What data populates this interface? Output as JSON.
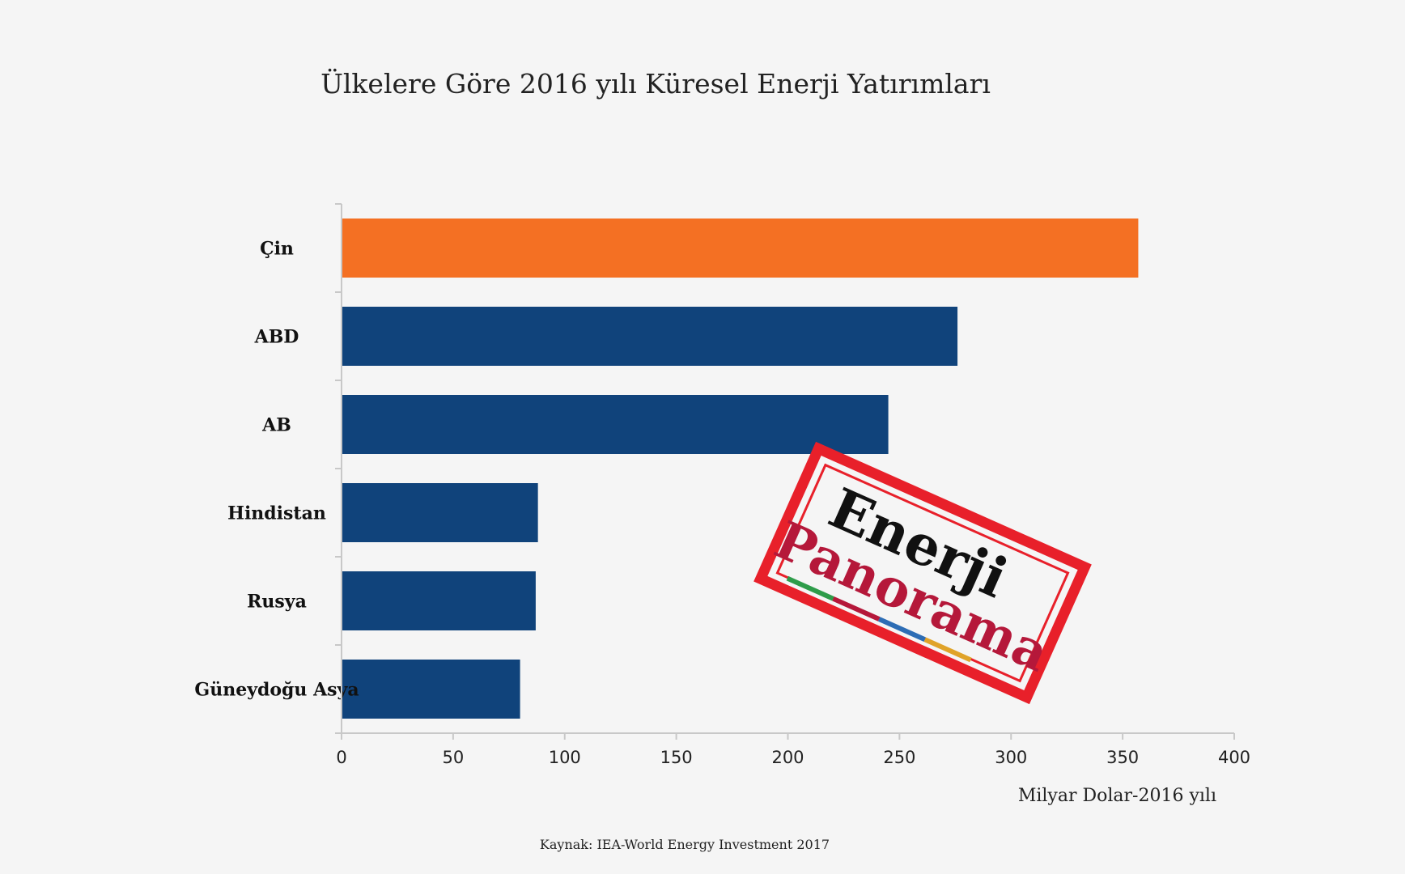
{
  "chart_data": {
    "type": "bar",
    "orientation": "horizontal",
    "title": "Ülkelere Göre 2016 yılı Küresel Enerji Yatırımları",
    "categories": [
      "Çin",
      "ABD",
      "AB",
      "Hindistan",
      "Rusya",
      "Güneydoğu Asya"
    ],
    "values": [
      357,
      276,
      245,
      88,
      87,
      80
    ],
    "bar_colors": [
      "#f47023",
      "#10437b",
      "#10437b",
      "#10437b",
      "#10437b",
      "#10437b"
    ],
    "xlabel": "Milyar Dolar-2016 yılı",
    "ylabel": "",
    "xlim": [
      0,
      400
    ],
    "xticks": [
      "0",
      "50",
      "100",
      "150",
      "200",
      "250",
      "300",
      "350",
      "400"
    ],
    "grid": false,
    "source": "Kaynak: IEA-World Energy Investment 2017"
  },
  "watermark": {
    "line1": "Enerji",
    "line2": "Panorama",
    "stamp_color": "#e8202a",
    "line1_color": "#111111",
    "line2_color": "#b5183a",
    "stripe_colors": [
      "#2e9c4a",
      "#b5183a",
      "#2d6db5",
      "#e0a329"
    ]
  }
}
